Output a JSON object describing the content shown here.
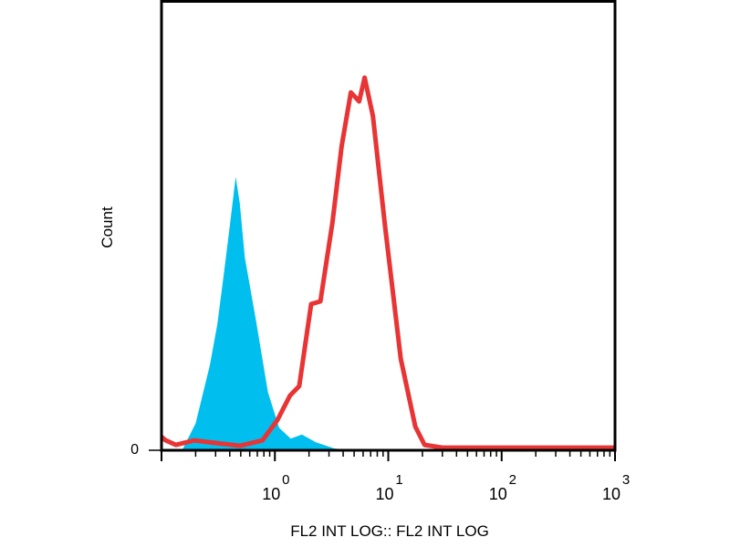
{
  "chart_data": {
    "type": "area",
    "title": "",
    "xlabel": "FL2 INT LOG:: FL2 INT LOG",
    "ylabel": "Count",
    "x_scale": "log",
    "xlim": [
      0.1,
      1000
    ],
    "ylim": [
      0,
      100
    ],
    "x_ticks": [
      {
        "base": "10",
        "exp": "0",
        "value": 1
      },
      {
        "base": "10",
        "exp": "1",
        "value": 10
      },
      {
        "base": "10",
        "exp": "2",
        "value": 100
      },
      {
        "base": "10",
        "exp": "3",
        "value": 1000
      }
    ],
    "y_ticks": [
      {
        "label": "0",
        "value": 0
      }
    ],
    "grid": false,
    "series": [
      {
        "style": "filled",
        "color": "#00bfef",
        "x": [
          0.1,
          0.152,
          0.2,
          0.267,
          0.31,
          0.353,
          0.4,
          0.451,
          0.49,
          0.543,
          0.681,
          0.868,
          1.09,
          1.38,
          1.73,
          2.3,
          3.34,
          4.43,
          1000
        ],
        "y": [
          0,
          0,
          6,
          19,
          28,
          39,
          50,
          61,
          55,
          43,
          29,
          13,
          5,
          2.6,
          3.5,
          1.8,
          0.4,
          0,
          0
        ]
      },
      {
        "style": "line",
        "color": "#e83434",
        "x": [
          0.1,
          0.109,
          0.134,
          0.194,
          0.304,
          0.494,
          0.775,
          1.05,
          1.36,
          1.64,
          2.09,
          2.52,
          3.22,
          3.88,
          4.68,
          5.54,
          6.19,
          7.33,
          9.35,
          12.9,
          17.3,
          20.9,
          30,
          1000
        ],
        "y": [
          3,
          2.2,
          1.2,
          2.2,
          1.6,
          1.0,
          2.2,
          6.7,
          12.2,
          14.3,
          32.6,
          33.2,
          50.9,
          67.8,
          79.8,
          77.8,
          83.1,
          74.5,
          50.1,
          20.4,
          5.3,
          1.2,
          0.6,
          0.6
        ]
      }
    ]
  }
}
